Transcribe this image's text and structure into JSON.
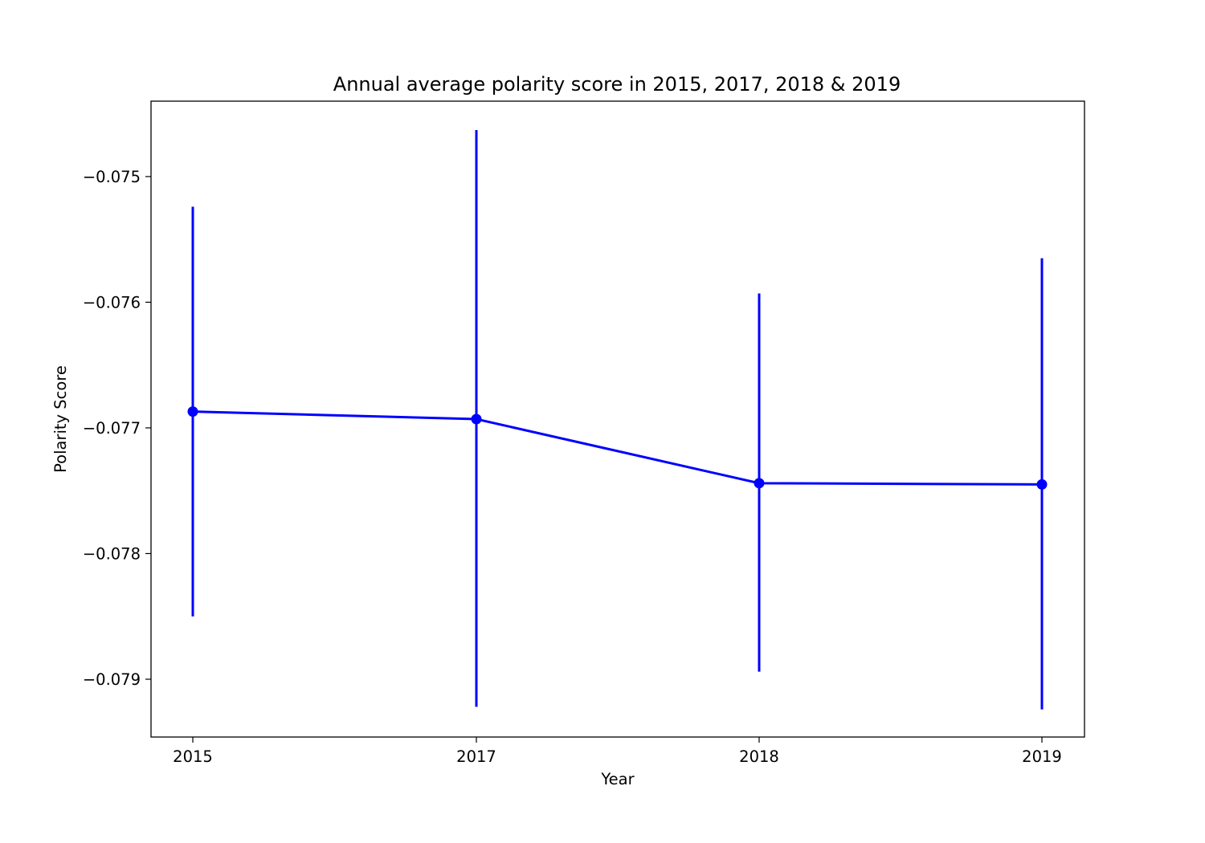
{
  "chart_data": {
    "type": "line",
    "title": "Annual average polarity score in 2015, 2017, 2018 & 2019",
    "xlabel": "Year",
    "ylabel": "Polarity Score",
    "categories": [
      "2015",
      "2017",
      "2018",
      "2019"
    ],
    "series": [
      {
        "values": [
          -0.07687,
          -0.07693,
          -0.07744,
          -0.07745
        ],
        "error_low": [
          -0.0785,
          -0.07922,
          -0.07894,
          -0.07924
        ],
        "error_high": [
          -0.07524,
          -0.07463,
          -0.07593,
          -0.07565
        ],
        "color": "#0000ff",
        "marker": "circle"
      }
    ],
    "ylim": [
      -0.07946,
      -0.0744
    ],
    "yticks": [
      -0.075,
      -0.076,
      -0.077,
      -0.078,
      -0.079
    ],
    "ytick_labels": [
      "−0.075",
      "−0.076",
      "−0.077",
      "−0.078",
      "−0.079"
    ],
    "grid": false,
    "legend": "none"
  }
}
